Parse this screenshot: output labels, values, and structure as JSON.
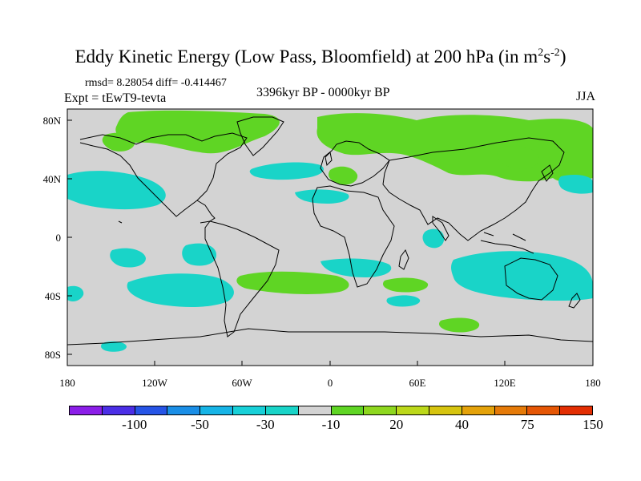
{
  "title": {
    "main": "Eddy Kinetic Energy (Low Pass, Bloomfield) at 200 hPa (in m",
    "sup1": "2",
    "mid": "s",
    "sup2": "-2",
    "end": ")"
  },
  "stats": "rmsd= 8.28054 diff= -0.414467",
  "experiment": "Expt = tEwT9-tevta",
  "period": "3396kyr BP - 0000kyr BP",
  "season": "JJA",
  "map": {
    "projection": "cylindrical-equidistant",
    "background_color": "#d3d3d3",
    "x_ticks": [
      "180",
      "120W",
      "60W",
      "0",
      "60E",
      "120E",
      "180"
    ],
    "y_ticks": [
      "80N",
      "40N",
      "0",
      "40S",
      "80S"
    ],
    "anomaly_colors": {
      "negative_small": "#19d4c8",
      "positive_small": "#5fd524"
    }
  },
  "colorbar": {
    "colors": [
      "#8b1ee8",
      "#4b2ee6",
      "#2654e6",
      "#1a8ee6",
      "#16b4e6",
      "#18d0d8",
      "#19d4c8",
      "#d3d3d3",
      "#5fd524",
      "#8ed71f",
      "#bcd81a",
      "#d6c40f",
      "#e4a20a",
      "#e57a08",
      "#e55605",
      "#e32e03"
    ],
    "labels": [
      "-100",
      "-50",
      "-30",
      "-10",
      "20",
      "40",
      "75",
      "150"
    ]
  }
}
